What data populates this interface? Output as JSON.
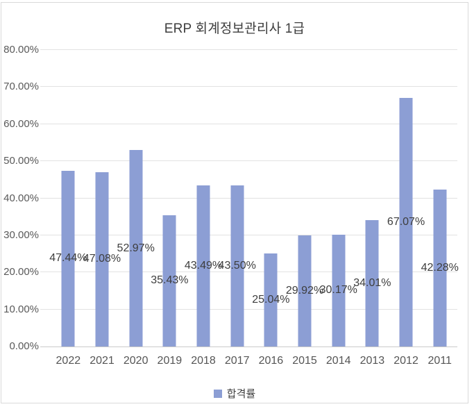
{
  "window": {
    "background": "#ffffff",
    "border_color": "#d9d9d9"
  },
  "chart_data": {
    "type": "bar",
    "title": "ERP 회계정보관리사 1급",
    "categories": [
      "2022",
      "2021",
      "2020",
      "2019",
      "2018",
      "2017",
      "2016",
      "2015",
      "2014",
      "2013",
      "2012",
      "2011"
    ],
    "series": [
      {
        "name": "합격률",
        "values": [
          47.44,
          47.08,
          52.97,
          35.43,
          43.49,
          43.5,
          25.04,
          29.92,
          30.17,
          34.01,
          67.07,
          42.28
        ],
        "labels": [
          "47.44%",
          "47.08%",
          "52.97%",
          "35.43%",
          "43.49%",
          "43.50%",
          "25.04%",
          "29.92%",
          "30.17%",
          "34.01%",
          "67.07%",
          "42.28%"
        ]
      }
    ],
    "xlabel": "",
    "ylabel": "",
    "ylim": [
      0,
      80
    ],
    "ytick_step": 10,
    "ytick_labels": [
      "0.00%",
      "10.00%",
      "20.00%",
      "30.00%",
      "40.00%",
      "50.00%",
      "60.00%",
      "70.00%",
      "80.00%"
    ],
    "grid": true,
    "legend_position": "bottom",
    "data_label_position": "center-of-bar",
    "bar_color": "#8c9ed4",
    "data_label_color": "#3d3d3d",
    "axis_text_color": "#595959",
    "gridline_color": "#e2e2e2",
    "baseline_color": "#c9c9c9"
  },
  "legend": {
    "label": "합격률",
    "marker_color": "#8c9ed4"
  }
}
